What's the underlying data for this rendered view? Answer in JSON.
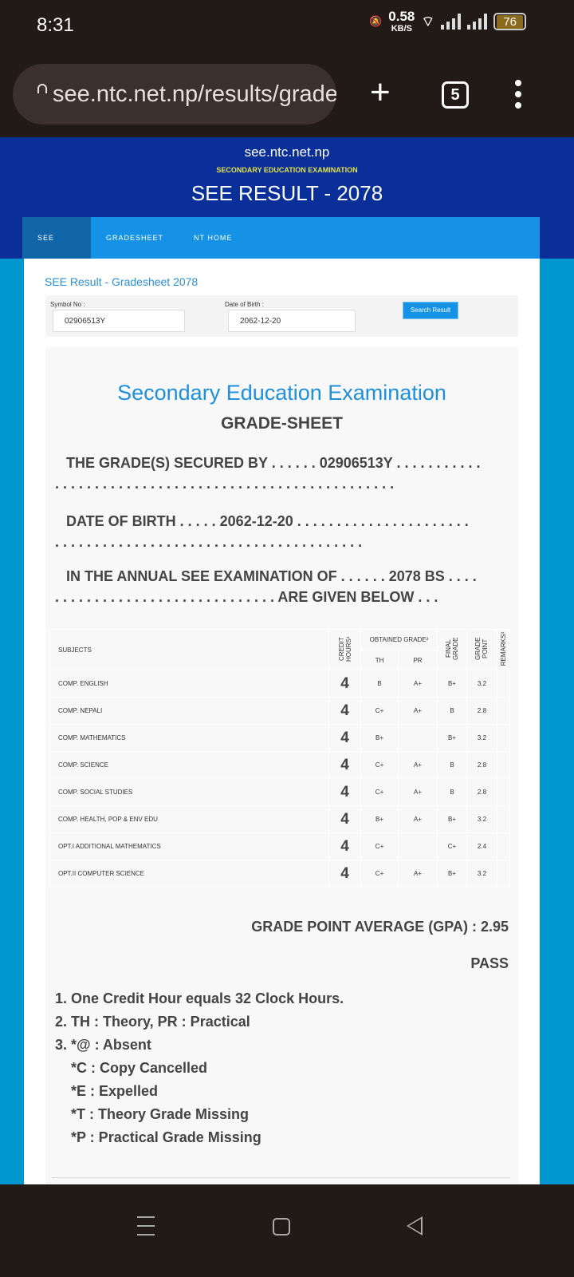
{
  "status": {
    "time": "8:31",
    "speed_value": "0.58",
    "speed_unit": "KB/S",
    "battery": "76",
    "icons": [
      "mute-icon",
      "wifi-icon",
      "signal-icon",
      "signal-icon",
      "battery-icon"
    ]
  },
  "browser": {
    "url": "see.ntc.net.np/results/gradesheet",
    "tab_count": "5"
  },
  "header": {
    "site": "see.ntc.net.np",
    "subtitle": "SECONDARY EDUCATION EXAMINATION",
    "title": "SEE RESULT - 2078"
  },
  "nav": [
    {
      "label": "SEE HOME",
      "active": true
    },
    {
      "label": "GRADESHEET"
    },
    {
      "label": "NT HOME"
    }
  ],
  "page_title": "SEE Result - Gradesheet 2078",
  "form": {
    "symbol_label": "Symbol No :",
    "symbol_value": "02906513Y",
    "dob_label": "Date of Birth :",
    "dob_value": "2062-12-20",
    "search_button": "Search Result"
  },
  "sheet": {
    "title": "Secondary Education Examination",
    "subtitle": "GRADE-SHEET",
    "line1": "THE GRADE(S) SECURED BY . . . . . . 02906513Y . . . . . . . . . . .",
    "line1b": ". . . . . . . . . . . . . . . . . . . . . . . . . . . . . . . . . . . . . . . . . . .",
    "line2": "DATE OF BIRTH . . . . . 2062-12-20 . . . . . . . . . . . . . . . . . . . . . .",
    "line2b": ". . . . . . . . . . . . . . . . . . . . . . . . . . . . . . . . . . . . . . .",
    "line3": "IN THE ANNUAL SEE EXAMINATION OF . . . . . . 2078 BS . . . .",
    "line3b": ". . . . . . . . . . . . . . . . . . . . . . . . . . . . ARE GIVEN BELOW . . .",
    "headers": {
      "subjects": "SUBJECTS",
      "credit": "CREDIT HOURS¹",
      "obtained": "OBTAINED GRADE²",
      "th": "TH",
      "pr": "PR",
      "final": "FINAL GRADE",
      "gp": "GRADE POINT",
      "remarks": "REMARKS³"
    },
    "rows": [
      {
        "subject": "COMP. ENGLISH",
        "credit": "4",
        "th": "B",
        "pr": "A+",
        "final": "B+",
        "gp": "3.2",
        "remarks": ""
      },
      {
        "subject": "COMP. NEPALI",
        "credit": "4",
        "th": "C+",
        "pr": "A+",
        "final": "B",
        "gp": "2.8",
        "remarks": ""
      },
      {
        "subject": "COMP. MATHEMATICS",
        "credit": "4",
        "th": "B+",
        "pr": "",
        "final": "B+",
        "gp": "3.2",
        "remarks": ""
      },
      {
        "subject": "COMP. SCIENCE",
        "credit": "4",
        "th": "C+",
        "pr": "A+",
        "final": "B",
        "gp": "2.8",
        "remarks": ""
      },
      {
        "subject": "COMP. SOCIAL STUDIES",
        "credit": "4",
        "th": "C+",
        "pr": "A+",
        "final": "B",
        "gp": "2.8",
        "remarks": ""
      },
      {
        "subject": "COMP. HEALTH, POP & ENV EDU",
        "credit": "4",
        "th": "B+",
        "pr": "A+",
        "final": "B+",
        "gp": "3.2",
        "remarks": ""
      },
      {
        "subject": "OPT.I ADDITIONAL MATHEMATICS",
        "credit": "4",
        "th": "C+",
        "pr": "",
        "final": "C+",
        "gp": "2.4",
        "remarks": ""
      },
      {
        "subject": "OPT.II COMPUTER SCIENCE",
        "credit": "4",
        "th": "C+",
        "pr": "A+",
        "final": "B+",
        "gp": "3.2",
        "remarks": ""
      }
    ],
    "gpa": "GRADE POINT AVERAGE (GPA) : 2.95",
    "result": "PASS",
    "notes": [
      "1. One Credit Hour equals 32 Clock Hours.",
      "2. TH : Theory, PR : Practical",
      "3. *@ : Absent",
      "*C : Copy Cancelled",
      "*E : Expelled",
      "*T : Theory Grade Missing",
      "*P : Practical Grade Missing"
    ]
  },
  "colors": {
    "header_bg": "#0b2f98",
    "nav_bg": "#1592e6",
    "nav_active": "#1166aa",
    "accent": "#1e90db",
    "page_bg": "#0096cf"
  }
}
